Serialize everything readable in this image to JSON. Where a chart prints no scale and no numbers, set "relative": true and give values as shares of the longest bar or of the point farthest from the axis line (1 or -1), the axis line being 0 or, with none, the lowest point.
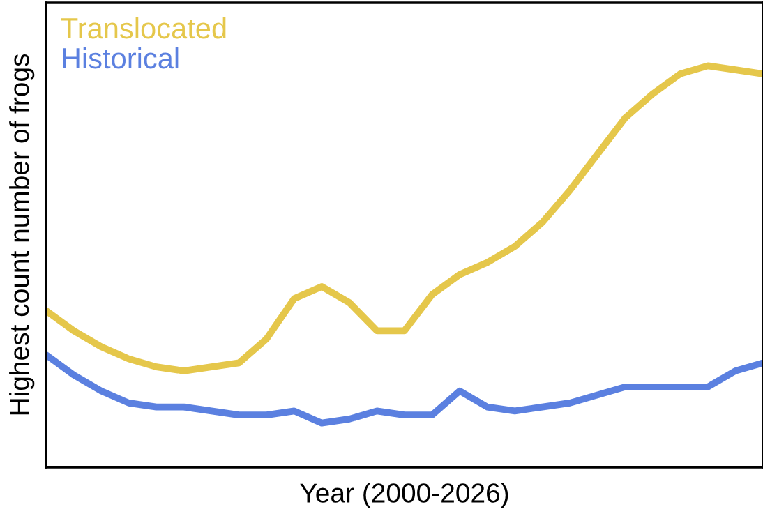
{
  "chart_data": {
    "type": "line",
    "relative": true,
    "xlabel": "Year (2000-2026)",
    "ylabel": "Highest count number of frogs",
    "legend": "top left",
    "grid": false,
    "tick_labels": false,
    "marker": "none",
    "line_style": "solid",
    "categories": [
      null,
      null,
      null,
      null,
      null,
      null,
      null,
      null,
      null,
      null,
      null,
      null,
      null,
      null,
      null,
      null,
      null,
      null,
      null,
      null,
      null,
      null,
      null,
      null,
      null,
      null,
      null
    ],
    "series": [
      {
        "name": "Translocated",
        "color": "#e5c74b",
        "values": [
          0.39,
          0.34,
          0.3,
          0.27,
          0.25,
          0.24,
          0.25,
          0.26,
          0.32,
          0.42,
          0.45,
          0.41,
          0.34,
          0.34,
          0.43,
          0.48,
          0.51,
          0.55,
          0.61,
          0.69,
          0.78,
          0.87,
          0.93,
          0.98,
          1,
          0.99,
          0.98
        ]
      },
      {
        "name": "Historical",
        "color": "#5b80e0",
        "values": [
          0.28,
          0.23,
          0.19,
          0.16,
          0.15,
          0.15,
          0.14,
          0.13,
          0.13,
          0.14,
          0.11,
          0.12,
          0.14,
          0.13,
          0.13,
          0.19,
          0.15,
          0.14,
          0.15,
          0.16,
          0.18,
          0.2,
          0.2,
          0.2,
          0.2,
          0.24,
          0.26
        ]
      }
    ]
  }
}
